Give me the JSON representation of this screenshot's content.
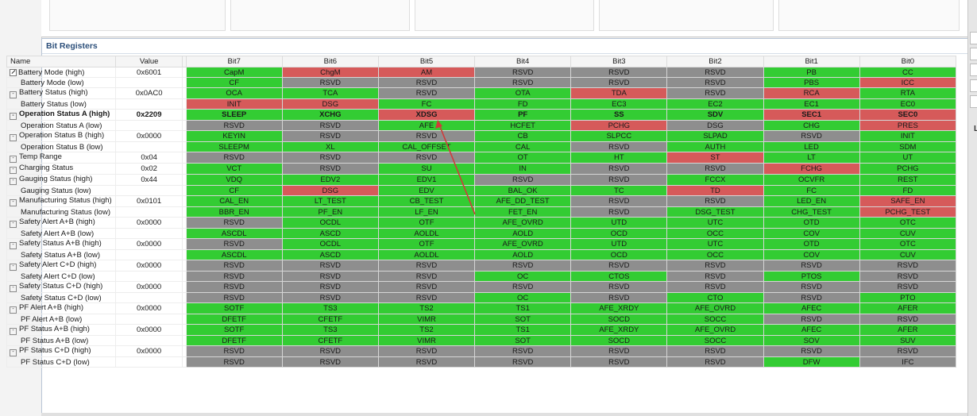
{
  "panel": {
    "title": "Bit Registers"
  },
  "columns": [
    "Name",
    "Value",
    "Bit7",
    "Bit6",
    "Bit5",
    "Bit4",
    "Bit3",
    "Bit2",
    "Bit1",
    "Bit0"
  ],
  "colors": {
    "G": "#33cc33",
    "R": "#d65a5a",
    "X": "#8e8e8e"
  },
  "rows": [
    {
      "name": "Battery Mode (high)",
      "value": "0x6001",
      "icon": "edit",
      "bits": [
        "CapM",
        "ChgM",
        "AM",
        "RSVD",
        "RSVD",
        "RSVD",
        "PB",
        "CC"
      ],
      "colors": "GRRXXXGG"
    },
    {
      "name": "Battery Mode (low)",
      "value": "",
      "icon": "none",
      "bits": [
        "CF",
        "RSVD",
        "RSVD",
        "RSVD",
        "RSVD",
        "RSVD",
        "PBS",
        "ICC"
      ],
      "colors": "GXXXXXGR"
    },
    {
      "name": "Battery Status (high)",
      "value": "0x0AC0",
      "icon": "expand",
      "bits": [
        "OCA",
        "TCA",
        "RSVD",
        "OTA",
        "TDA",
        "RSVD",
        "RCA",
        "RTA"
      ],
      "colors": "GGXGRXRG"
    },
    {
      "name": "Battery Status (low)",
      "value": "",
      "icon": "none",
      "bits": [
        "INIT",
        "DSG",
        "FC",
        "FD",
        "EC3",
        "EC2",
        "EC1",
        "EC0"
      ],
      "colors": "RRGGGGGG"
    },
    {
      "name": "Operation Status A (high)",
      "value": "0x2209",
      "icon": "expand",
      "bold": true,
      "bits": [
        "SLEEP",
        "XCHG",
        "XDSG",
        "PF",
        "SS",
        "SDV",
        "SEC1",
        "SEC0"
      ],
      "colors": "GGRGGGRR"
    },
    {
      "name": "Operation Status A (low)",
      "value": "",
      "icon": "none",
      "bits": [
        "RSVD",
        "RSVD",
        "AFE",
        "HCFET",
        "PCHG",
        "DSG",
        "CHG",
        "PRES"
      ],
      "colors": "XXGGRXGR"
    },
    {
      "name": "Operation Status B (high)",
      "value": "0x0000",
      "icon": "expand",
      "bits": [
        "KEYIN",
        "RSVD",
        "RSVD",
        "CB",
        "SLPCC",
        "SLPAD",
        "RSVD",
        "INIT"
      ],
      "colors": "GXXGGGXG"
    },
    {
      "name": "Operation Status B (low)",
      "value": "",
      "icon": "none",
      "bits": [
        "SLEEPM",
        "XL",
        "CAL_OFFSET",
        "CAL",
        "RSVD",
        "AUTH",
        "LED",
        "SDM"
      ],
      "colors": "GGGGXGGG"
    },
    {
      "name": "Temp Range",
      "value": "0x04",
      "icon": "expand",
      "bits": [
        "RSVD",
        "RSVD",
        "RSVD",
        "OT",
        "HT",
        "ST",
        "LT",
        "UT"
      ],
      "colors": "XXXGGRGG"
    },
    {
      "name": "Charging Status",
      "value": "0x02",
      "icon": "expand",
      "bits": [
        "VCT",
        "RSVD",
        "SU",
        "IN",
        "RSVD",
        "RSVD",
        "FCHG",
        "PCHG"
      ],
      "colors": "GXGGXXRG"
    },
    {
      "name": "Gauging Status (high)",
      "value": "0x44",
      "icon": "expand",
      "bits": [
        "VDQ",
        "EDV2",
        "EDV1",
        "RSVD",
        "RSVD",
        "FCCX",
        "OCVFR",
        "REST"
      ],
      "colors": "GGGXXGGG"
    },
    {
      "name": "Gauging Status (low)",
      "value": "",
      "icon": "none",
      "bits": [
        "CF",
        "DSG",
        "EDV",
        "BAL_OK",
        "TC",
        "TD",
        "FC",
        "FD"
      ],
      "colors": "GRGGGRGG"
    },
    {
      "name": "Manufacturing Status (high)",
      "value": "0x0101",
      "icon": "expand",
      "bits": [
        "CAL_EN",
        "LT_TEST",
        "CB_TEST",
        "AFE_DD_TEST",
        "RSVD",
        "RSVD",
        "LED_EN",
        "SAFE_EN"
      ],
      "colors": "GGGGXXGR"
    },
    {
      "name": "Manufacturing Status (low)",
      "value": "",
      "icon": "none",
      "bits": [
        "BBR_EN",
        "PF_EN",
        "LF_EN",
        "FET_EN",
        "RSVD",
        "DSG_TEST",
        "CHG_TEST",
        "PCHG_TEST"
      ],
      "colors": "GGGGXGGR"
    },
    {
      "name": "Safety Alert A+B (high)",
      "value": "0x0000",
      "icon": "expand",
      "bits": [
        "RSVD",
        "OCDL",
        "OTF",
        "AFE_OVRD",
        "UTD",
        "UTC",
        "OTD",
        "OTC"
      ],
      "colors": "XGGGGGGG"
    },
    {
      "name": "Safety Alert A+B (low)",
      "value": "",
      "icon": "none",
      "bits": [
        "ASCDL",
        "ASCD",
        "AOLDL",
        "AOLD",
        "OCD",
        "OCC",
        "COV",
        "CUV"
      ],
      "colors": "GGGGGGGG"
    },
    {
      "name": "Safety Status A+B (high)",
      "value": "0x0000",
      "icon": "expand",
      "bits": [
        "RSVD",
        "OCDL",
        "OTF",
        "AFE_OVRD",
        "UTD",
        "UTC",
        "OTD",
        "OTC"
      ],
      "colors": "XGGGGGGG"
    },
    {
      "name": "Safety Status A+B (low)",
      "value": "",
      "icon": "none",
      "bits": [
        "ASCDL",
        "ASCD",
        "AOLDL",
        "AOLD",
        "OCD",
        "OCC",
        "COV",
        "CUV"
      ],
      "colors": "GGGGGGGG"
    },
    {
      "name": "Safety Alert C+D (high)",
      "value": "0x0000",
      "icon": "expand",
      "bits": [
        "RSVD",
        "RSVD",
        "RSVD",
        "RSVD",
        "RSVD",
        "RSVD",
        "RSVD",
        "RSVD"
      ],
      "colors": "XXXXXXXX"
    },
    {
      "name": "Safety Alert C+D (low)",
      "value": "",
      "icon": "none",
      "bits": [
        "RSVD",
        "RSVD",
        "RSVD",
        "OC",
        "CTOS",
        "RSVD",
        "PTOS",
        "RSVD"
      ],
      "colors": "XXXGGXGX"
    },
    {
      "name": "Safety Status C+D (high)",
      "value": "0x0000",
      "icon": "expand",
      "bits": [
        "RSVD",
        "RSVD",
        "RSVD",
        "RSVD",
        "RSVD",
        "RSVD",
        "RSVD",
        "RSVD"
      ],
      "colors": "XXXXXXXX"
    },
    {
      "name": "Safety Status C+D (low)",
      "value": "",
      "icon": "none",
      "bits": [
        "RSVD",
        "RSVD",
        "RSVD",
        "OC",
        "RSVD",
        "CTO",
        "RSVD",
        "PTO"
      ],
      "colors": "XXXGXGXG"
    },
    {
      "name": "PF Alert A+B (high)",
      "value": "0x0000",
      "icon": "expand",
      "bits": [
        "SOTF",
        "TS3",
        "TS2",
        "TS1",
        "AFE_XRDY",
        "AFE_OVRD",
        "AFEC",
        "AFER"
      ],
      "colors": "GGGGGGGG"
    },
    {
      "name": "PF Alert A+B (low)",
      "value": "",
      "icon": "none",
      "bits": [
        "DFETF",
        "CFETF",
        "VIMR",
        "SOT",
        "SOCD",
        "SOCC",
        "RSVD",
        "RSVD"
      ],
      "colors": "GGGGGGXX"
    },
    {
      "name": "PF Status A+B (high)",
      "value": "0x0000",
      "icon": "expand",
      "bits": [
        "SOTF",
        "TS3",
        "TS2",
        "TS1",
        "AFE_XRDY",
        "AFE_OVRD",
        "AFEC",
        "AFER"
      ],
      "colors": "GGGGGGGG"
    },
    {
      "name": "PF Status A+B (low)",
      "value": "",
      "icon": "none",
      "bits": [
        "DFETF",
        "CFETF",
        "VIMR",
        "SOT",
        "SOCD",
        "SOCC",
        "SOV",
        "SUV"
      ],
      "colors": "GGGGGGGG"
    },
    {
      "name": "PF Status C+D (high)",
      "value": "0x0000",
      "icon": "expand",
      "bits": [
        "RSVD",
        "RSVD",
        "RSVD",
        "RSVD",
        "RSVD",
        "RSVD",
        "RSVD",
        "RSVD"
      ],
      "colors": "XXXXXXXX"
    },
    {
      "name": "PF Status C+D (low)",
      "value": "",
      "icon": "none",
      "bits": [
        "RSVD",
        "RSVD",
        "RSVD",
        "RSVD",
        "RSVD",
        "RSVD",
        "DFW",
        "IFC"
      ],
      "colors": "XXXXXXGX"
    }
  ],
  "side": {
    "label": "L"
  }
}
